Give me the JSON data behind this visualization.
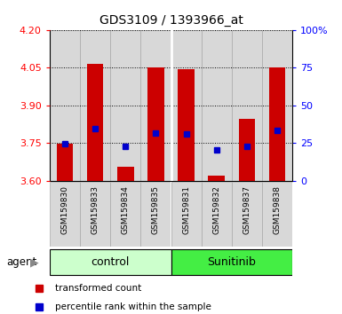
{
  "title": "GDS3109 / 1393966_at",
  "samples": [
    "GSM159830",
    "GSM159833",
    "GSM159834",
    "GSM159835",
    "GSM159831",
    "GSM159832",
    "GSM159837",
    "GSM159838"
  ],
  "bar_tops": [
    3.748,
    4.065,
    3.655,
    4.052,
    4.042,
    3.618,
    3.845,
    4.049
  ],
  "bar_bottoms": [
    3.6,
    3.6,
    3.6,
    3.6,
    3.6,
    3.6,
    3.6,
    3.6
  ],
  "blue_y": [
    3.748,
    3.805,
    3.735,
    3.788,
    3.787,
    3.722,
    3.735,
    3.8
  ],
  "ylim": [
    3.6,
    4.2
  ],
  "yticks_left": [
    3.6,
    3.75,
    3.9,
    4.05,
    4.2
  ],
  "yticks_right_labels": [
    "0",
    "25",
    "50",
    "75",
    "100%"
  ],
  "bar_color": "#cc0000",
  "blue_color": "#0000cc",
  "group_labels": [
    "control",
    "Sunitinib"
  ],
  "group_color_light": "#ccffcc",
  "group_color_dark": "#44ee44",
  "agent_label": "agent",
  "legend_red_label": "transformed count",
  "legend_blue_label": "percentile rank within the sample",
  "bar_width": 0.55,
  "col_bg_color": "#d8d8d8",
  "col_border_color": "#aaaaaa"
}
